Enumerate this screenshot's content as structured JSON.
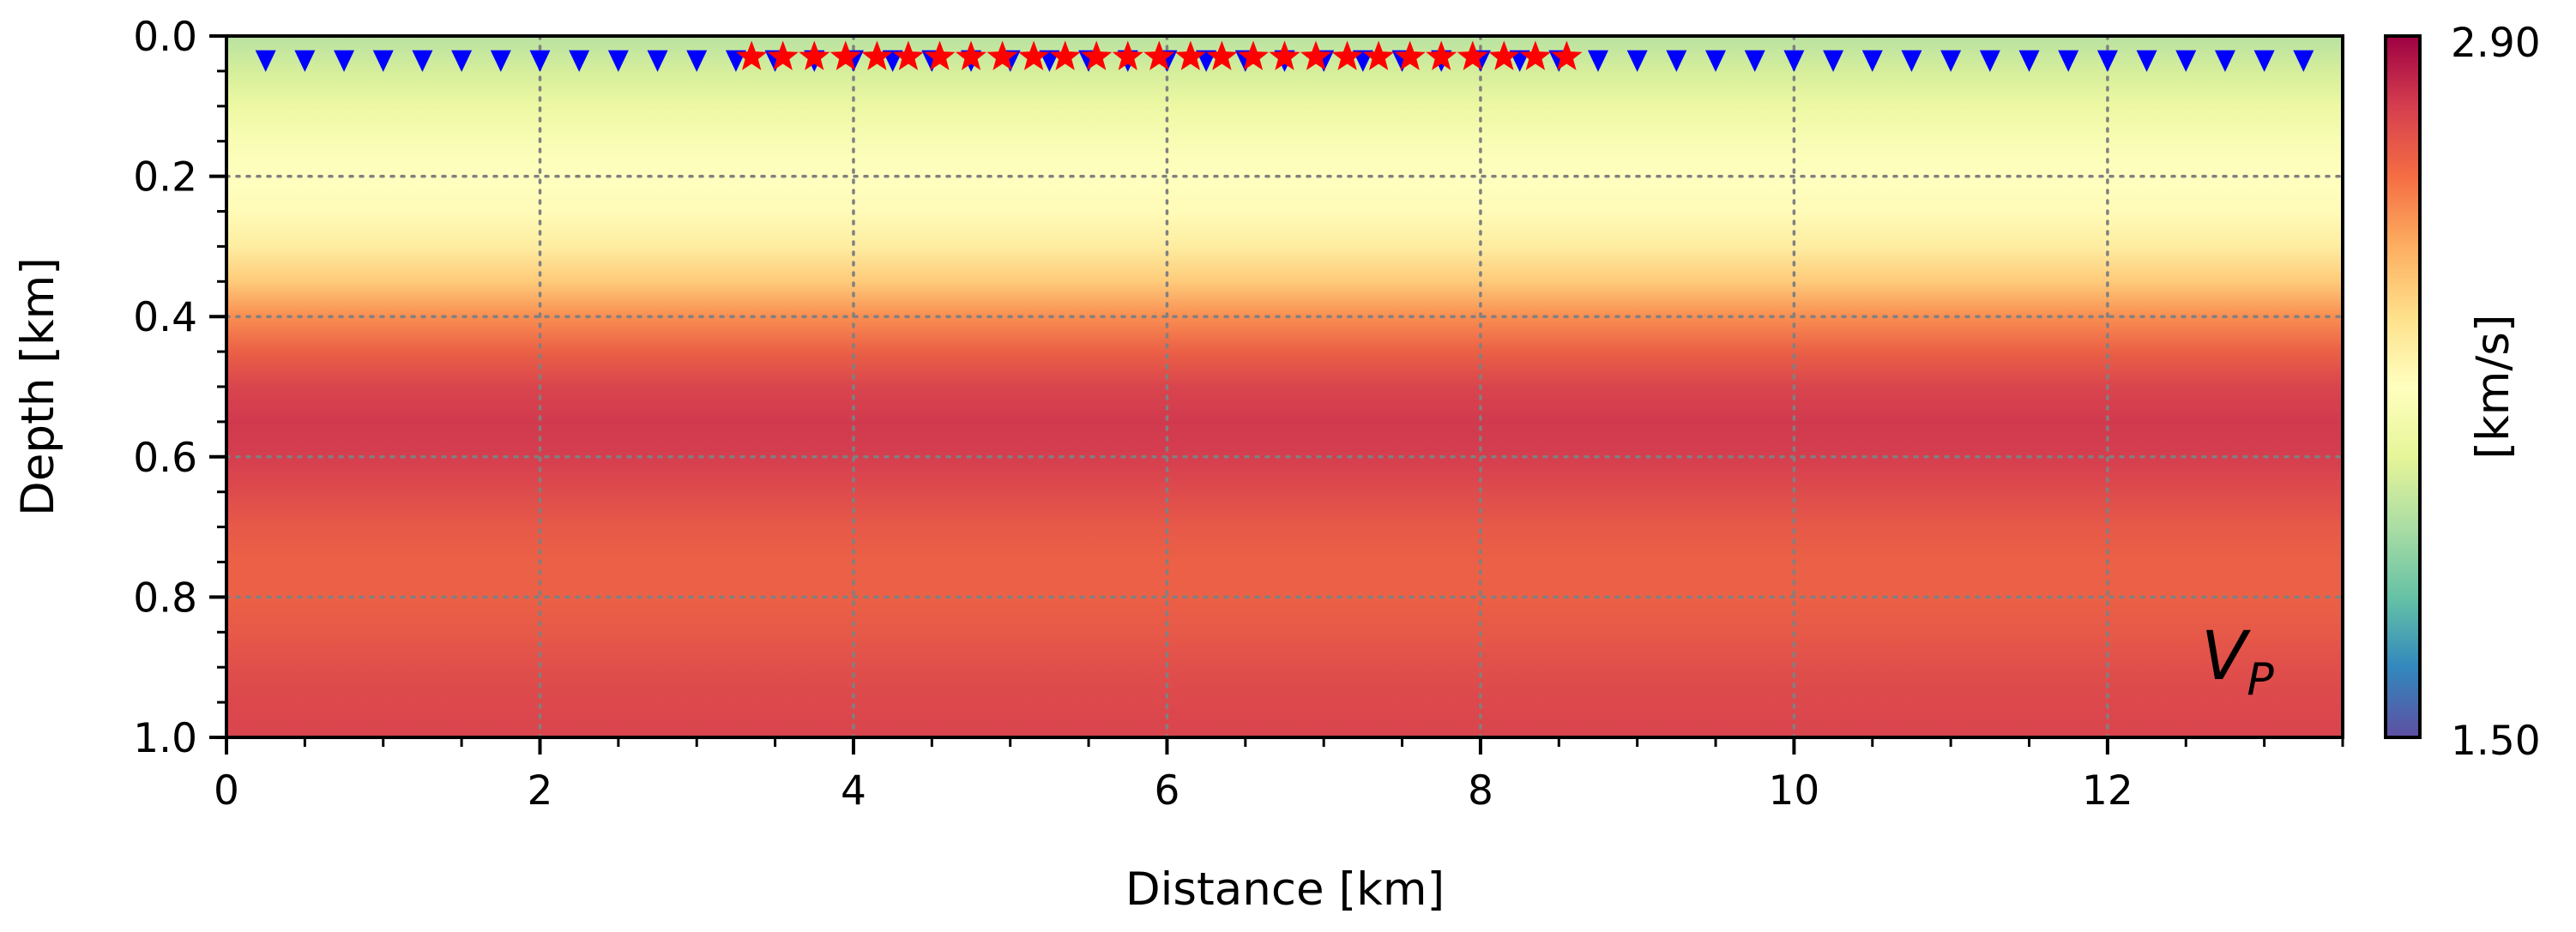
{
  "chart_data": {
    "type": "heatmap",
    "title": "",
    "xlabel": "Distance [km]",
    "ylabel": "Depth [km]",
    "xlim": [
      0,
      13.5
    ],
    "ylim": [
      1.0,
      0.0
    ],
    "x_ticks": [
      "0",
      "2",
      "4",
      "6",
      "8",
      "10",
      "12"
    ],
    "y_ticks": [
      "0.0",
      "0.2",
      "0.4",
      "0.6",
      "0.8",
      "1.0"
    ],
    "grid": true,
    "annotation": {
      "main": "V",
      "sub": "P"
    },
    "colorbar": {
      "label": "[km/s]",
      "min": 1.5,
      "max": 2.9,
      "min_label": "1.50",
      "max_label": "2.90",
      "colormap": "Spectral_r"
    },
    "velocity_profile": {
      "depth": [
        0.0,
        0.05,
        0.1,
        0.15,
        0.2,
        0.25,
        0.3,
        0.35,
        0.4,
        0.45,
        0.5,
        0.55,
        0.6,
        0.65,
        0.7,
        0.75,
        0.8,
        0.85,
        0.9,
        0.95,
        1.0
      ],
      "vp": [
        1.95,
        2.02,
        2.1,
        2.16,
        2.2,
        2.22,
        2.28,
        2.4,
        2.55,
        2.66,
        2.74,
        2.77,
        2.76,
        2.72,
        2.68,
        2.66,
        2.66,
        2.68,
        2.71,
        2.73,
        2.74
      ]
    },
    "receivers": {
      "depth": 0.035,
      "x_start": 0.25,
      "spacing": 0.25,
      "count": 53,
      "color": "#0000ff"
    },
    "sources": {
      "depth": 0.03,
      "x_start": 3.35,
      "spacing": 0.2,
      "count": 27,
      "color": "#ff0000"
    },
    "grid_color": "#808080"
  }
}
